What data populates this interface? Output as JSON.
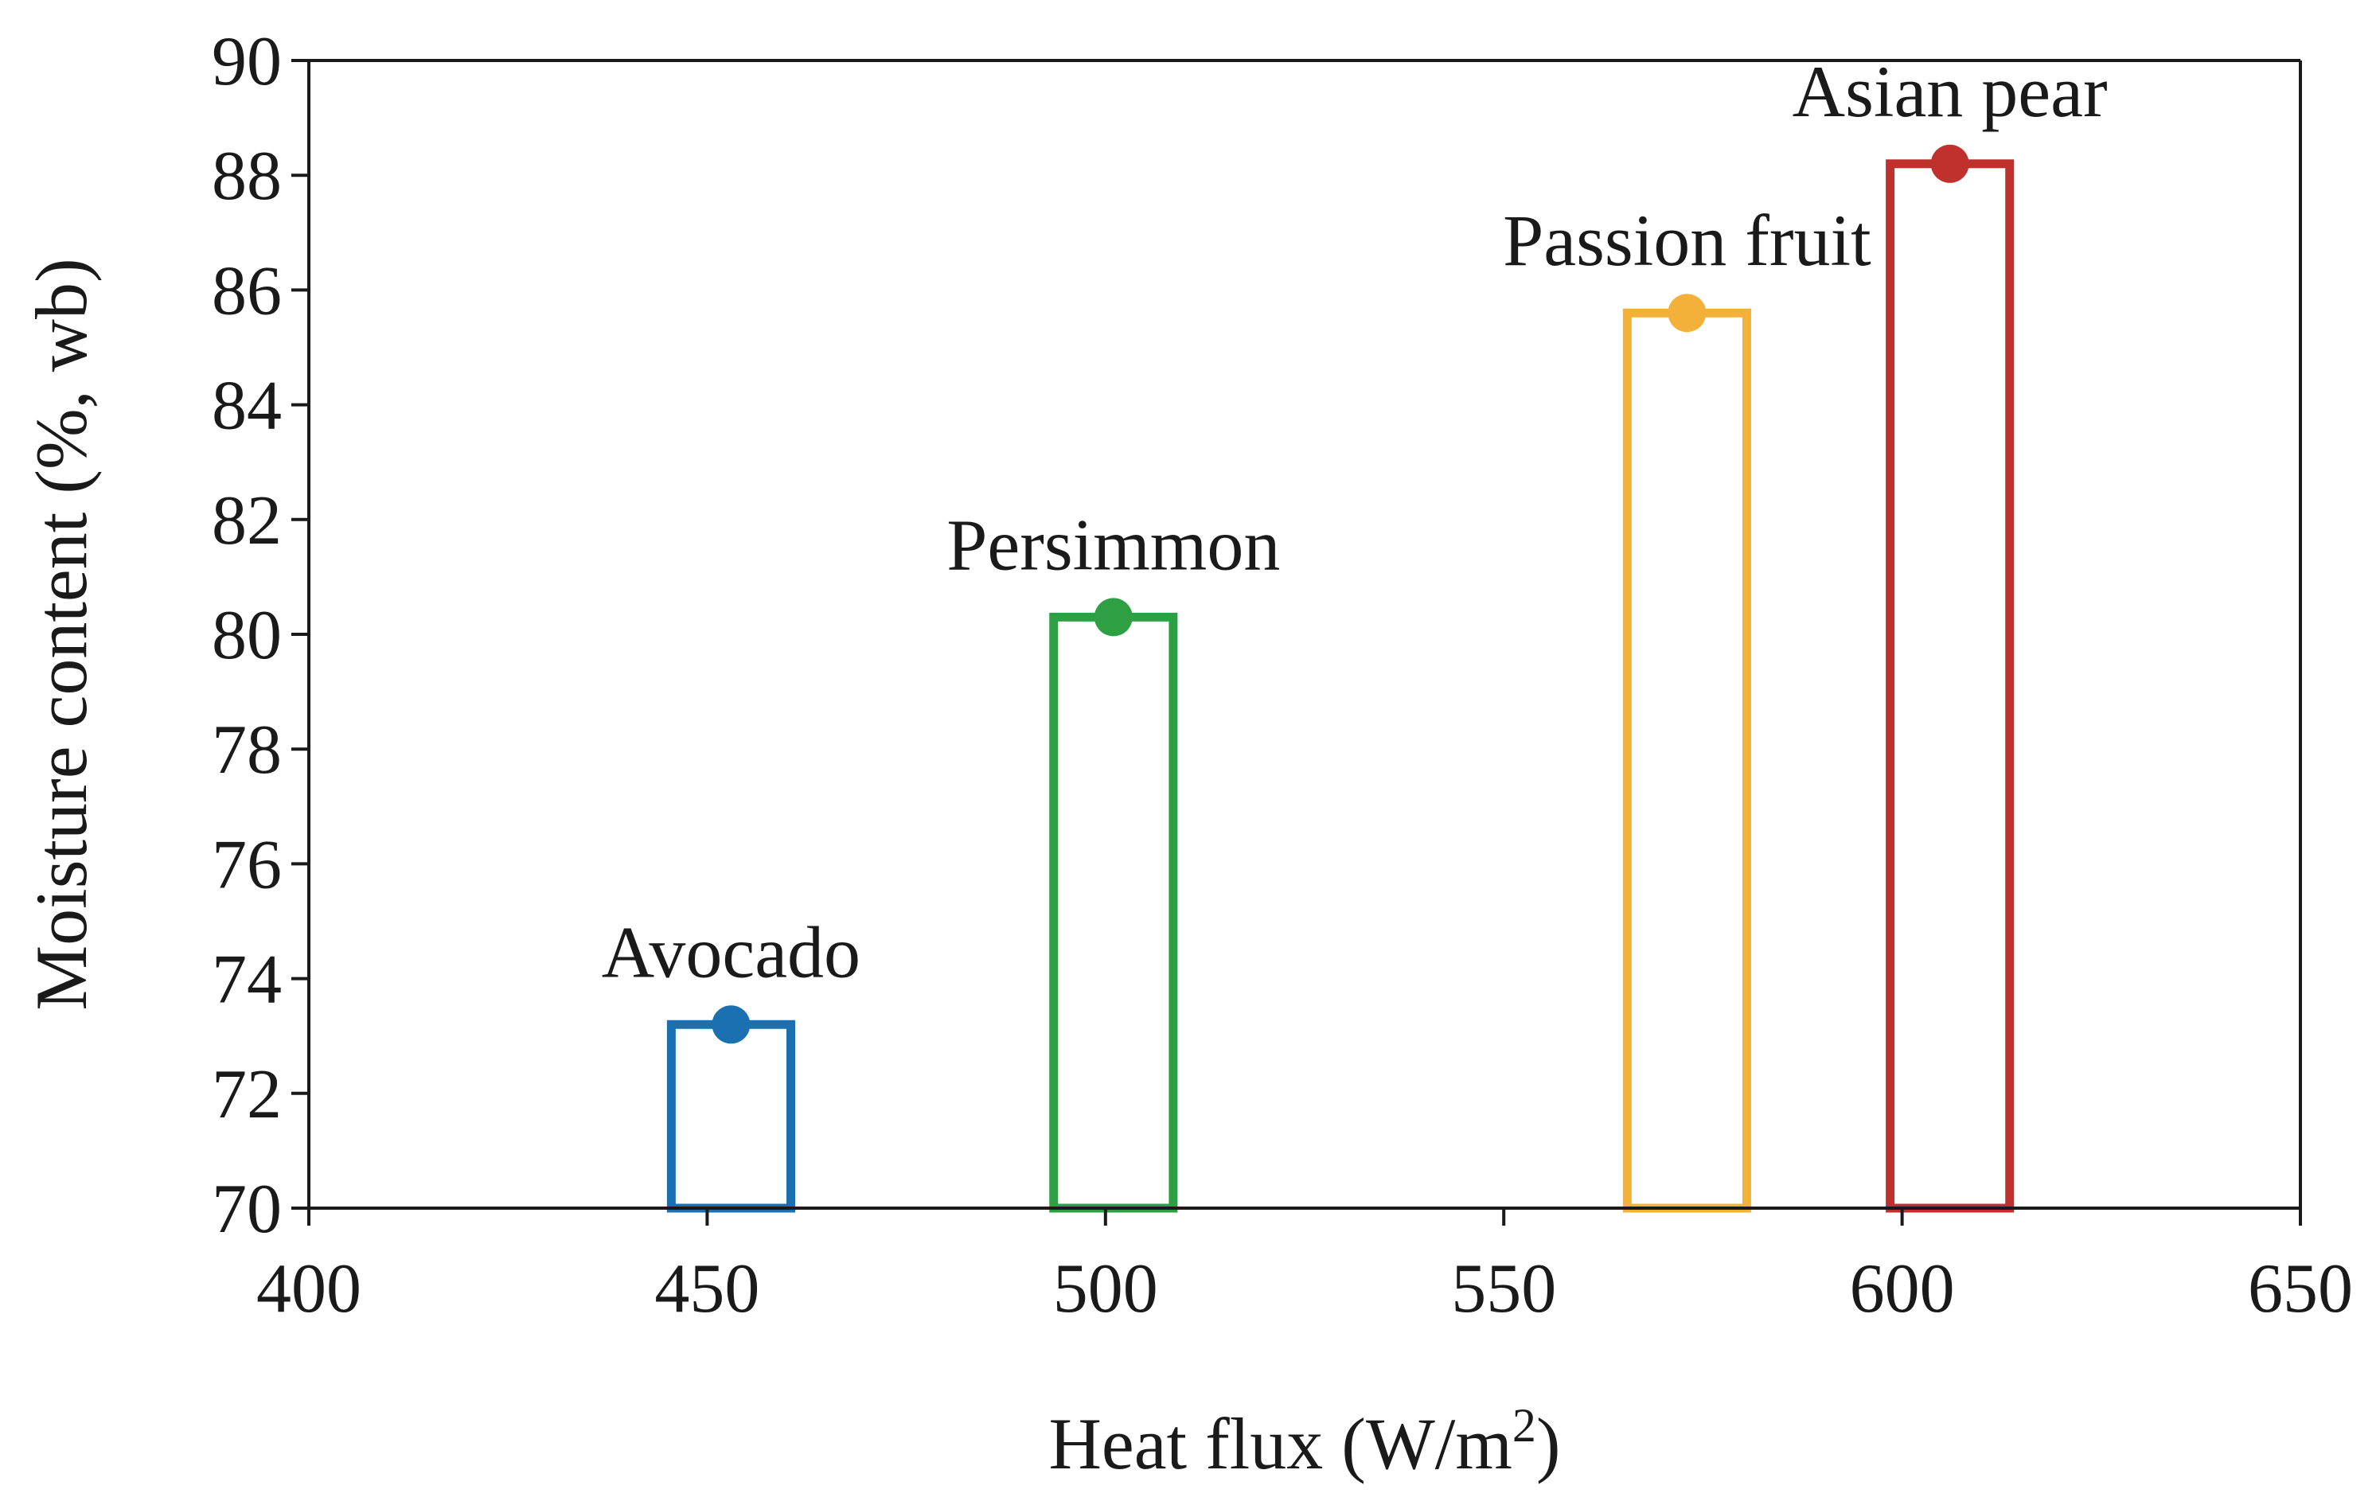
{
  "chart_data": {
    "type": "bar",
    "title": "",
    "xlabel": "Heat flux (W/m",
    "xlabel_superscript": "2",
    "xlabel_suffix": ")",
    "ylabel": "Moisture content (%, wb)",
    "xlim": [
      400,
      650
    ],
    "ylim": [
      70,
      90
    ],
    "x_ticks": [
      400,
      450,
      500,
      550,
      600,
      650
    ],
    "y_ticks": [
      70,
      72,
      74,
      76,
      78,
      80,
      82,
      84,
      86,
      88,
      90
    ],
    "bar_width_units": 15,
    "series": [
      {
        "name": "Avocado",
        "x": 453,
        "value": 73.2,
        "color": "#1a70b0"
      },
      {
        "name": "Persimmon",
        "x": 501,
        "value": 80.3,
        "color": "#2ea043"
      },
      {
        "name": "Passion fruit",
        "x": 573,
        "value": 85.6,
        "color": "#f4b13a"
      },
      {
        "name": "Asian pear",
        "x": 606,
        "value": 88.2,
        "color": "#c0302d"
      }
    ]
  }
}
